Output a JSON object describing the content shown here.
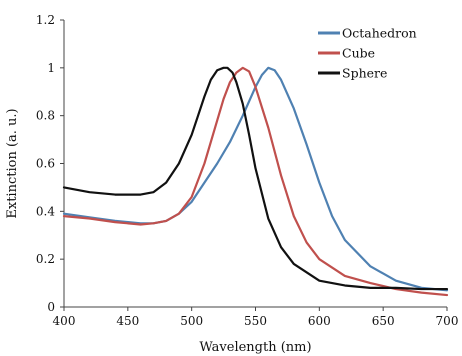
{
  "chart_data": {
    "type": "line",
    "xlabel": "Wavelength (nm)",
    "ylabel": "Extinction (a. u.)",
    "xlim": [
      400,
      700
    ],
    "ylim": [
      0,
      1.2
    ],
    "x_ticks": [
      "400",
      "450",
      "500",
      "550",
      "600",
      "650",
      "700"
    ],
    "y_ticks": [
      "0",
      "0.2",
      "0.4",
      "0.6",
      "0.8",
      "1",
      "1.2"
    ],
    "grid": false,
    "legend_position": "top-right",
    "series": [
      {
        "name": "Octahedron",
        "color": "#4f81b2",
        "x": [
          400,
          420,
          440,
          460,
          470,
          480,
          490,
          500,
          510,
          520,
          530,
          540,
          550,
          555,
          560,
          565,
          570,
          580,
          590,
          600,
          610,
          620,
          640,
          660,
          680,
          700
        ],
        "y": [
          0.39,
          0.375,
          0.36,
          0.35,
          0.35,
          0.36,
          0.39,
          0.44,
          0.52,
          0.6,
          0.69,
          0.8,
          0.92,
          0.97,
          1.0,
          0.99,
          0.95,
          0.83,
          0.68,
          0.52,
          0.38,
          0.28,
          0.17,
          0.11,
          0.08,
          0.07
        ]
      },
      {
        "name": "Cube",
        "color": "#c0504d",
        "x": [
          400,
          420,
          440,
          460,
          470,
          480,
          490,
          500,
          510,
          520,
          525,
          530,
          535,
          540,
          545,
          550,
          560,
          570,
          580,
          590,
          600,
          620,
          640,
          660,
          680,
          700
        ],
        "y": [
          0.38,
          0.37,
          0.355,
          0.345,
          0.35,
          0.36,
          0.39,
          0.46,
          0.6,
          0.78,
          0.87,
          0.94,
          0.98,
          1.0,
          0.985,
          0.92,
          0.75,
          0.55,
          0.38,
          0.27,
          0.2,
          0.13,
          0.1,
          0.075,
          0.06,
          0.05
        ]
      },
      {
        "name": "Sphere",
        "color": "#111111",
        "x": [
          400,
          420,
          440,
          460,
          470,
          480,
          490,
          500,
          505,
          510,
          515,
          520,
          525,
          528,
          532,
          535,
          540,
          545,
          550,
          560,
          570,
          580,
          600,
          620,
          640,
          660,
          680,
          700
        ],
        "y": [
          0.5,
          0.48,
          0.47,
          0.47,
          0.48,
          0.52,
          0.6,
          0.72,
          0.8,
          0.88,
          0.95,
          0.99,
          1.0,
          1.0,
          0.98,
          0.94,
          0.85,
          0.72,
          0.58,
          0.37,
          0.25,
          0.18,
          0.11,
          0.09,
          0.08,
          0.08,
          0.075,
          0.075
        ]
      }
    ]
  }
}
